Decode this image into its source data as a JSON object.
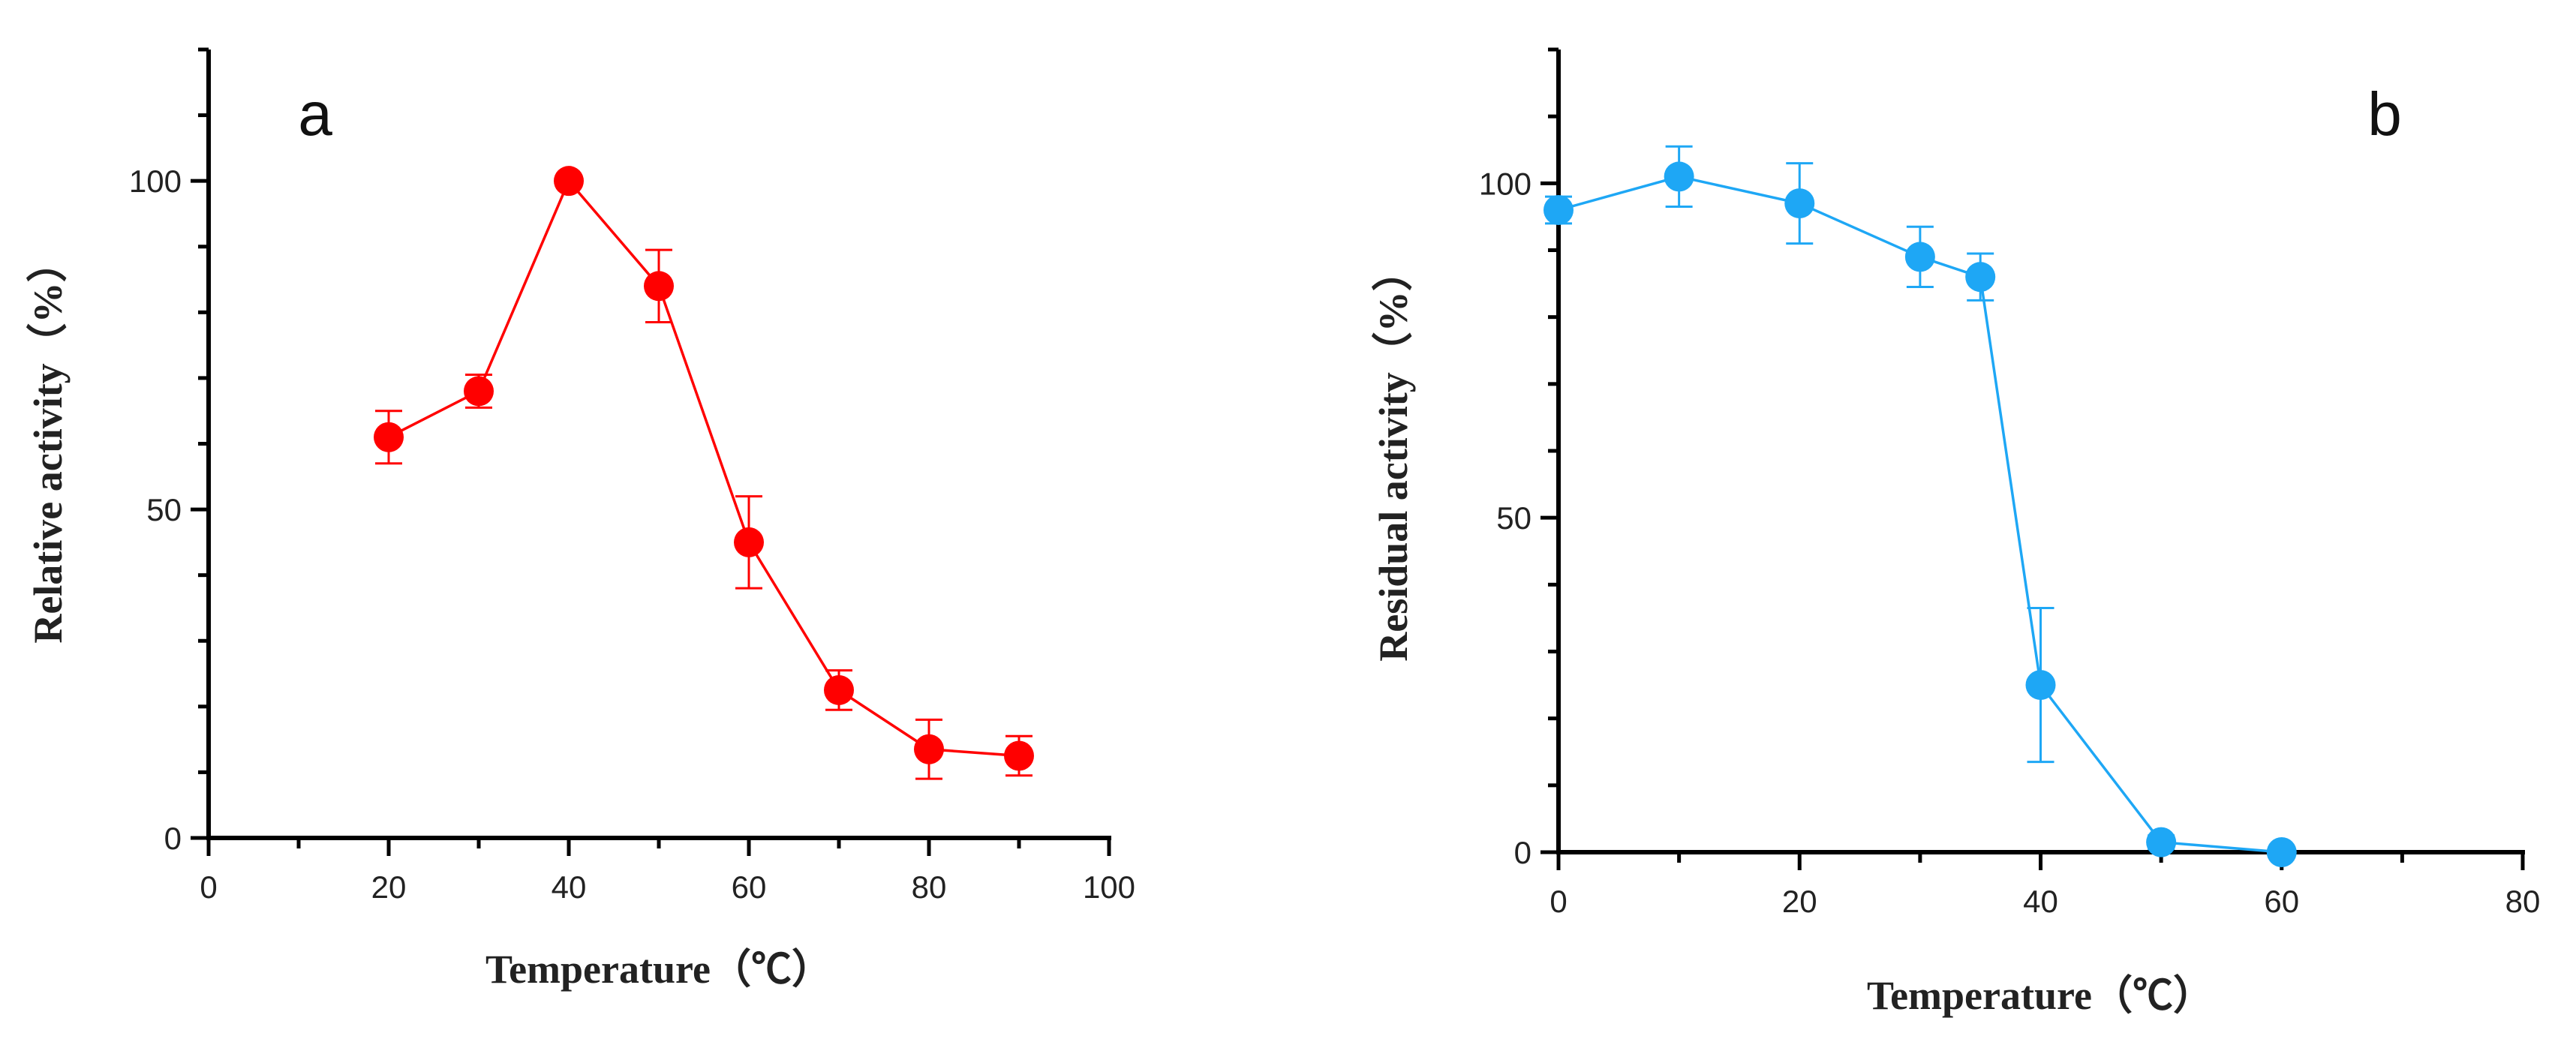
{
  "chart_data": [
    {
      "type": "line",
      "panel": "a",
      "color": "#ff0000",
      "title": "",
      "xlabel": "Temperature（℃）",
      "ylabel": "Relative activity（%）",
      "xlim": [
        0,
        100
      ],
      "ylim": [
        0,
        120
      ],
      "xticks": [
        0,
        20,
        40,
        60,
        80,
        100
      ],
      "yticks": [
        0,
        50,
        100
      ],
      "grid": false,
      "series": [
        {
          "name": "Relative activity",
          "x": [
            20,
            30,
            40,
            50,
            60,
            70,
            80,
            90
          ],
          "y": [
            61,
            68,
            100,
            84,
            45,
            22.5,
            13.5,
            12.5
          ],
          "error": [
            4,
            2.5,
            0,
            5.5,
            7,
            3,
            4.5,
            3
          ]
        }
      ]
    },
    {
      "type": "line",
      "panel": "b",
      "color": "#1ea7f5",
      "title": "",
      "xlabel": "Temperature（℃）",
      "ylabel": "Residual activity（%）",
      "xlim": [
        0,
        80
      ],
      "ylim": [
        0,
        120
      ],
      "xticks": [
        0,
        20,
        40,
        60,
        80
      ],
      "yticks": [
        0,
        50,
        100
      ],
      "grid": false,
      "series": [
        {
          "name": "Residual activity",
          "x": [
            0,
            10,
            20,
            30,
            35,
            40,
            50,
            60
          ],
          "y": [
            96,
            101,
            97,
            89,
            86,
            25,
            1.5,
            0
          ],
          "error": [
            2,
            4.5,
            6,
            4.5,
            3.5,
            11.5,
            1,
            0.5
          ]
        }
      ]
    }
  ]
}
